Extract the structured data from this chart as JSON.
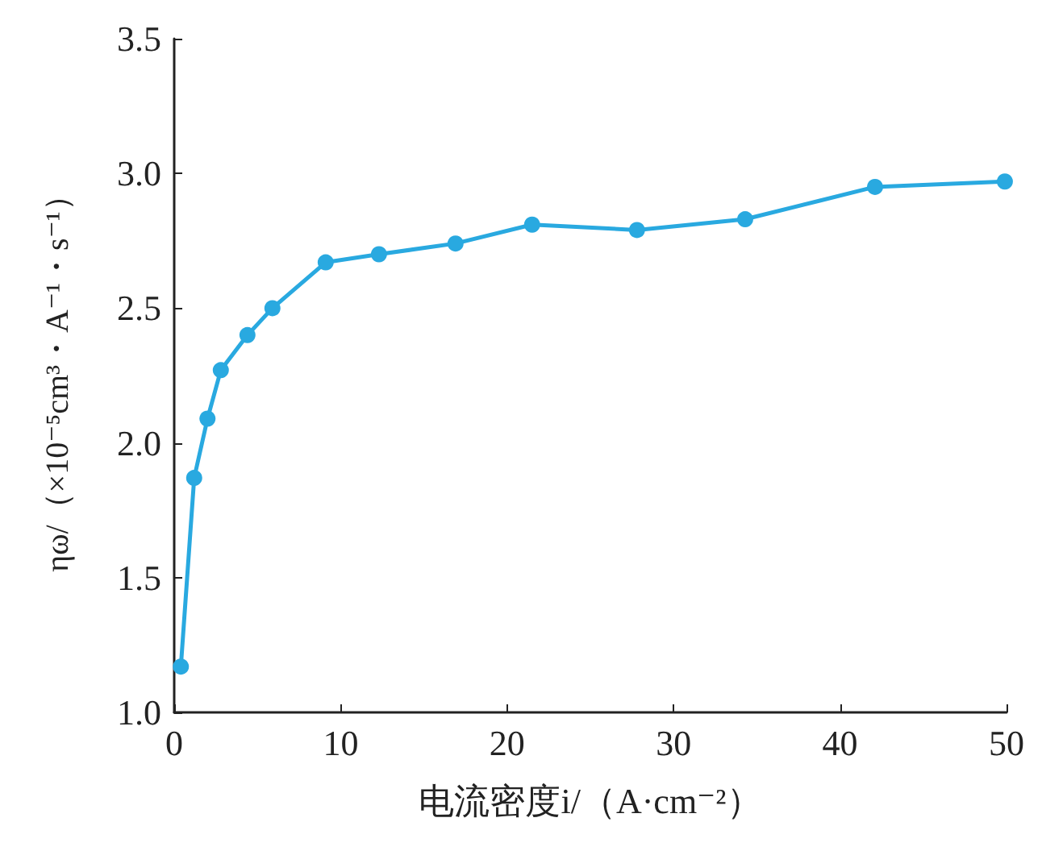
{
  "chart_data": {
    "type": "line",
    "xlabel": "电流密度i/（A·cm⁻²）",
    "ylabel": "ηω/（×10⁻⁵cm³・A⁻¹・s⁻¹）",
    "x": [
      0.4,
      1.2,
      2.0,
      2.8,
      4.4,
      5.9,
      9.1,
      12.3,
      16.9,
      21.5,
      27.8,
      34.3,
      42.1,
      49.9
    ],
    "series": [
      {
        "color": "#29a9e0",
        "values": [
          1.17,
          1.87,
          2.09,
          2.27,
          2.4,
          2.5,
          2.67,
          2.7,
          2.74,
          2.81,
          2.79,
          2.83,
          2.95,
          2.97
        ]
      }
    ],
    "xlim": [
      0,
      50
    ],
    "xticks": [
      0,
      10,
      20,
      30,
      40,
      50
    ],
    "ylim": [
      1.0,
      3.5
    ],
    "yticks": [
      {
        "value": 1,
        "label": "1.0"
      },
      1.5,
      {
        "value": 2,
        "label": "2.0"
      },
      2.5,
      {
        "value": 3,
        "label": "3.0"
      },
      3.5
    ],
    "grid": false,
    "marker": "circle",
    "line_style": "solid"
  }
}
